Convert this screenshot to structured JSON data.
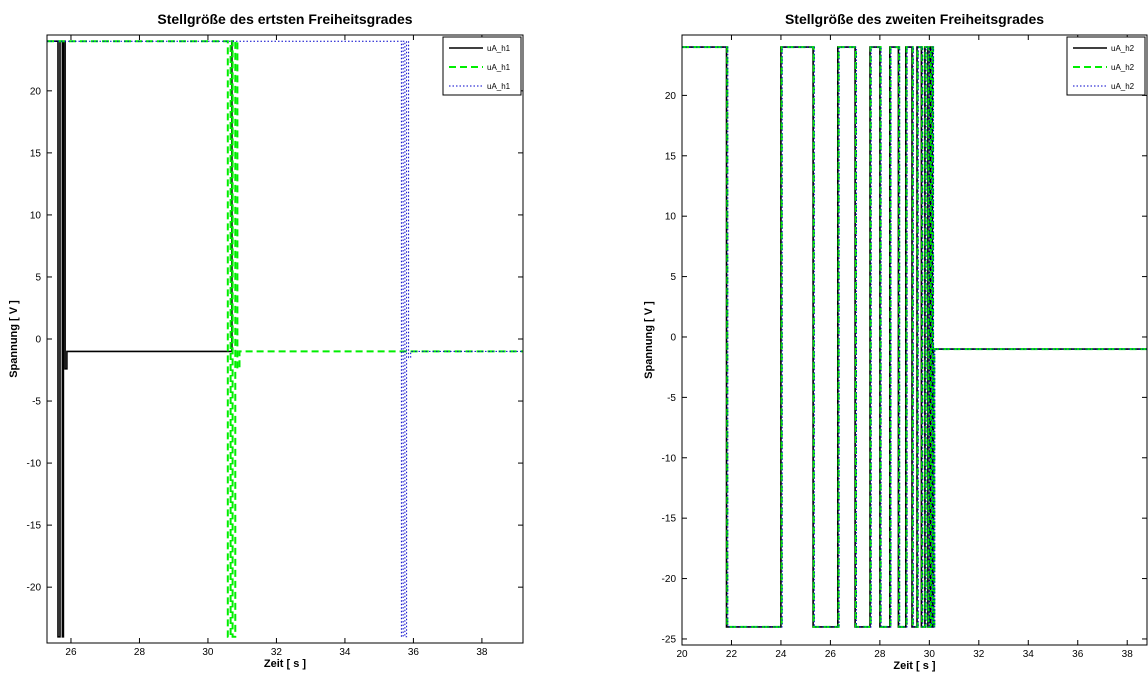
{
  "chart_data": [
    {
      "type": "line",
      "title": "Stellgröße des ertsten Freiheitsgrades",
      "xlabel": "Zeit [ s ]",
      "ylabel": "Spannung [ V ]",
      "xlim": [
        25.3,
        39.2
      ],
      "ylim": [
        -24.5,
        24.5
      ],
      "xticks": [
        26,
        28,
        30,
        32,
        34,
        36,
        38
      ],
      "yticks": [
        -20,
        -15,
        -10,
        -5,
        0,
        5,
        10,
        15,
        20
      ],
      "grid": false,
      "legend_position": "top-right",
      "series": [
        {
          "name": "uA_h1",
          "color": "#000000",
          "dash": "solid",
          "x": [
            25.3,
            25.62,
            25.62,
            25.68,
            25.68,
            25.75,
            25.75,
            25.78,
            25.78,
            25.83,
            25.83,
            25.88,
            25.88,
            30.7,
            30.7,
            30.76
          ],
          "y": [
            24,
            24,
            -24,
            -24,
            24,
            24,
            -24,
            -24,
            24,
            24,
            -2.4,
            -2.4,
            -1,
            -1,
            24,
            24
          ]
        },
        {
          "name": "uA_h1",
          "color": "#00ee00",
          "dash": "dashed",
          "x": [
            25.3,
            30.58,
            30.58,
            30.66,
            30.66,
            30.72,
            30.72,
            30.8,
            30.8,
            30.86,
            30.86,
            30.92,
            30.92,
            39.2
          ],
          "y": [
            24,
            24,
            -24,
            -24,
            24,
            24,
            -24,
            -24,
            24,
            24,
            -2.4,
            -2.4,
            -1,
            -1
          ]
        },
        {
          "name": "uA_h1",
          "color": "#0000cc",
          "dash": "dotted",
          "x": [
            25.3,
            35.65,
            35.65,
            35.7,
            35.7,
            35.75,
            35.75,
            35.8,
            35.8,
            35.86,
            35.86,
            35.92,
            35.92,
            39.2
          ],
          "y": [
            24,
            24,
            -24,
            -24,
            24,
            24,
            -24,
            -24,
            24,
            24,
            -1.5,
            -1.5,
            -1,
            -1
          ]
        }
      ]
    },
    {
      "type": "line",
      "title": "Stellgröße des zweiten Freiheitsgrades",
      "xlabel": "Zeit [ s ]",
      "ylabel": "Spannung [ V ]",
      "xlim": [
        20,
        38.8
      ],
      "ylim": [
        -25.5,
        25
      ],
      "xticks": [
        20,
        22,
        24,
        26,
        28,
        30,
        32,
        34,
        36,
        38
      ],
      "yticks": [
        -25,
        -20,
        -15,
        -10,
        -5,
        0,
        5,
        10,
        15,
        20
      ],
      "grid": false,
      "legend_position": "top-right",
      "switch_times": [
        21.8,
        24.0,
        25.3,
        26.3,
        27.0,
        27.6,
        28.0,
        28.4,
        28.75,
        29.05,
        29.3,
        29.5,
        29.68,
        29.82,
        29.94,
        30.04,
        30.12
      ],
      "settle_value": -1,
      "series": [
        {
          "name": "uA_h2",
          "color": "#000000",
          "dash": "solid",
          "offset": 0
        },
        {
          "name": "uA_h2",
          "color": "#00ee00",
          "dash": "dashed",
          "offset": 0.03
        },
        {
          "name": "uA_h2",
          "color": "#0000cc",
          "dash": "dotted",
          "offset": 0.05
        }
      ]
    }
  ]
}
